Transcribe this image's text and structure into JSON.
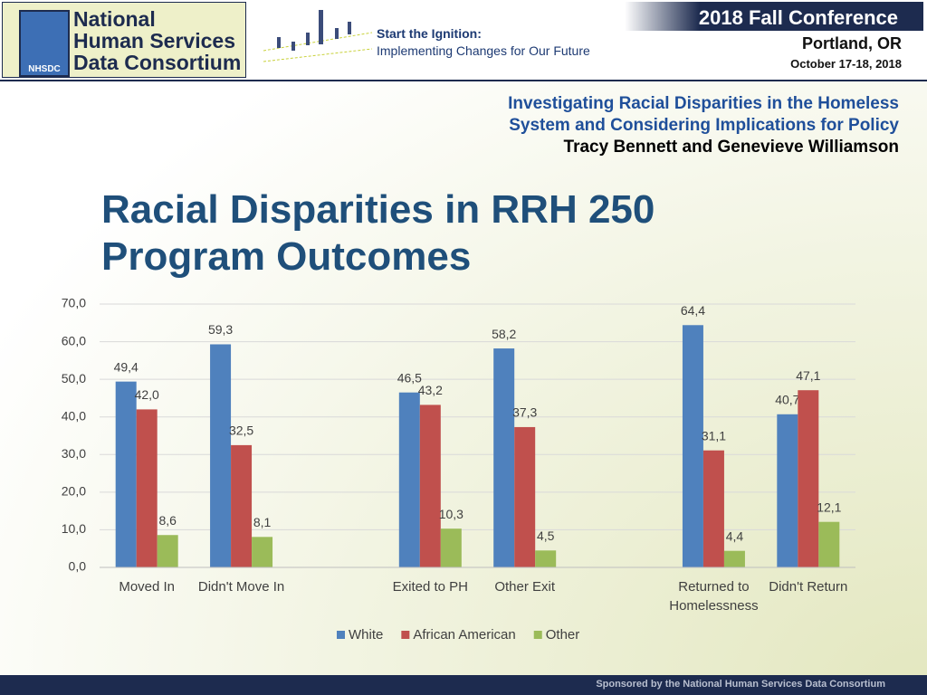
{
  "header": {
    "logo_mark": "NHSDC",
    "logo_lines": [
      "National",
      "Human Services",
      "Data Consortium"
    ],
    "tagline": "Start the Ignition:",
    "tagline_sub": "Implementing Changes for Our Future",
    "conference": "2018 Fall Conference",
    "city": "Portland, OR",
    "dates": "October 17-18, 2018"
  },
  "presentation": {
    "lines": [
      "Investigating Racial Disparities in the Homeless",
      "System and Considering Implications for Policy"
    ],
    "authors": "Tracy Bennett and Genevieve Williamson"
  },
  "footer": "Sponsored by the National Human Services Data Consortium",
  "chart_data": {
    "type": "bar",
    "title": "Racial Disparities in RRH 250 Program Outcomes",
    "categories": [
      "Moved In",
      "Didn't Move In",
      null,
      "Exited to PH",
      "Other Exit",
      null,
      "Returned to Homelessness",
      "Didn't Return"
    ],
    "series": [
      {
        "name": "White",
        "color": "#4f81bd",
        "values": [
          49.4,
          59.3,
          null,
          46.5,
          58.2,
          null,
          64.4,
          40.7
        ],
        "value_labels": [
          "49,4",
          "59,3",
          null,
          "46,5",
          "58,2",
          null,
          "64,4",
          "40,7"
        ]
      },
      {
        "name": "African American",
        "color": "#c0504d",
        "values": [
          42.0,
          32.5,
          null,
          43.2,
          37.3,
          null,
          31.1,
          47.1
        ],
        "value_labels": [
          "42,0",
          "32,5",
          null,
          "43,2",
          "37,3",
          null,
          "31,1",
          "47,1"
        ]
      },
      {
        "name": "Other",
        "color": "#9bbb59",
        "values": [
          8.6,
          8.1,
          null,
          10.3,
          4.5,
          null,
          4.4,
          12.1
        ],
        "value_labels": [
          "8,6",
          "8,1",
          null,
          "10,3",
          "4,5",
          null,
          "4,4",
          "12,1"
        ]
      }
    ],
    "ylim": [
      0,
      70
    ],
    "yticks": [
      {
        "value": 0,
        "label": "0,0"
      },
      {
        "value": 10,
        "label": "10,0"
      },
      {
        "value": 20,
        "label": "20,0"
      },
      {
        "value": 30,
        "label": "30,0"
      },
      {
        "value": 40,
        "label": "40,0"
      },
      {
        "value": 50,
        "label": "50,0"
      },
      {
        "value": 60,
        "label": "60,0"
      },
      {
        "value": 70,
        "label": "70,0"
      }
    ],
    "grid": true,
    "legend": "bottom"
  }
}
